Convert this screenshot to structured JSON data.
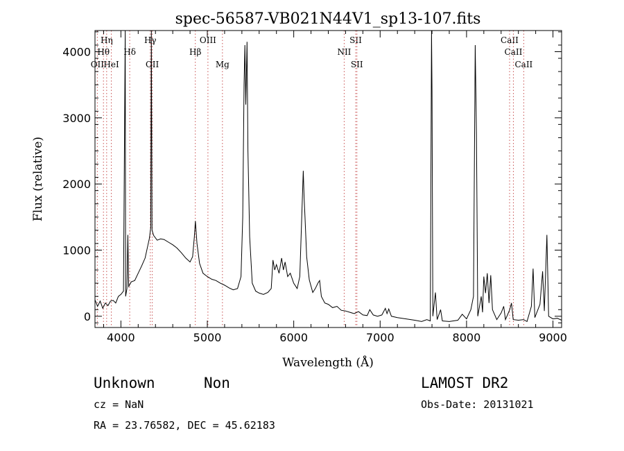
{
  "chart_data": {
    "type": "line",
    "title": "spec-56587-VB021N44V1_sp13-107.fits",
    "xlabel": "Wavelength (Å)",
    "ylabel": "Flux (relative)",
    "xlim": [
      3700,
      9100
    ],
    "ylim": [
      -170,
      4320
    ],
    "xticks": [
      4000,
      5000,
      6000,
      7000,
      8000,
      9000
    ],
    "yticks": [
      0,
      1000,
      2000,
      3000,
      4000
    ],
    "grid": false,
    "series": [
      {
        "points": [
          [
            3700,
            250
          ],
          [
            3730,
            150
          ],
          [
            3760,
            230
          ],
          [
            3790,
            120
          ],
          [
            3820,
            200
          ],
          [
            3850,
            160
          ],
          [
            3880,
            230
          ],
          [
            3910,
            240
          ],
          [
            3940,
            200
          ],
          [
            3970,
            300
          ],
          [
            4000,
            330
          ],
          [
            4030,
            380
          ],
          [
            4050,
            4320
          ],
          [
            4055,
            300
          ],
          [
            4070,
            420
          ],
          [
            4080,
            1230
          ],
          [
            4090,
            450
          ],
          [
            4120,
            520
          ],
          [
            4160,
            540
          ],
          [
            4200,
            650
          ],
          [
            4240,
            760
          ],
          [
            4280,
            880
          ],
          [
            4310,
            1060
          ],
          [
            4330,
            1180
          ],
          [
            4345,
            1340
          ],
          [
            4352,
            4320
          ],
          [
            4360,
            1300
          ],
          [
            4380,
            1220
          ],
          [
            4420,
            1150
          ],
          [
            4460,
            1170
          ],
          [
            4500,
            1160
          ],
          [
            4550,
            1120
          ],
          [
            4600,
            1080
          ],
          [
            4650,
            1030
          ],
          [
            4700,
            960
          ],
          [
            4750,
            880
          ],
          [
            4800,
            820
          ],
          [
            4830,
            900
          ],
          [
            4850,
            1200
          ],
          [
            4862,
            1440
          ],
          [
            4880,
            1100
          ],
          [
            4910,
            800
          ],
          [
            4950,
            650
          ],
          [
            5000,
            600
          ],
          [
            5050,
            560
          ],
          [
            5100,
            540
          ],
          [
            5150,
            500
          ],
          [
            5200,
            470
          ],
          [
            5250,
            430
          ],
          [
            5300,
            400
          ],
          [
            5350,
            420
          ],
          [
            5390,
            600
          ],
          [
            5410,
            1500
          ],
          [
            5425,
            3500
          ],
          [
            5435,
            4100
          ],
          [
            5445,
            3200
          ],
          [
            5460,
            4150
          ],
          [
            5470,
            2500
          ],
          [
            5490,
            1200
          ],
          [
            5520,
            500
          ],
          [
            5560,
            380
          ],
          [
            5600,
            350
          ],
          [
            5650,
            330
          ],
          [
            5700,
            360
          ],
          [
            5740,
            420
          ],
          [
            5760,
            850
          ],
          [
            5780,
            700
          ],
          [
            5800,
            780
          ],
          [
            5830,
            650
          ],
          [
            5860,
            880
          ],
          [
            5880,
            700
          ],
          [
            5900,
            820
          ],
          [
            5930,
            600
          ],
          [
            5960,
            650
          ],
          [
            6000,
            500
          ],
          [
            6040,
            420
          ],
          [
            6070,
            600
          ],
          [
            6090,
            1400
          ],
          [
            6110,
            2200
          ],
          [
            6120,
            1800
          ],
          [
            6130,
            1500
          ],
          [
            6150,
            900
          ],
          [
            6180,
            550
          ],
          [
            6220,
            360
          ],
          [
            6250,
            420
          ],
          [
            6280,
            500
          ],
          [
            6300,
            540
          ],
          [
            6320,
            300
          ],
          [
            6360,
            200
          ],
          [
            6400,
            180
          ],
          [
            6450,
            130
          ],
          [
            6500,
            150
          ],
          [
            6550,
            90
          ],
          [
            6600,
            80
          ],
          [
            6650,
            60
          ],
          [
            6700,
            40
          ],
          [
            6750,
            70
          ],
          [
            6800,
            20
          ],
          [
            6850,
            10
          ],
          [
            6880,
            100
          ],
          [
            6920,
            20
          ],
          [
            6970,
            0
          ],
          [
            7020,
            20
          ],
          [
            7060,
            120
          ],
          [
            7080,
            40
          ],
          [
            7100,
            110
          ],
          [
            7130,
            0
          ],
          [
            7200,
            -20
          ],
          [
            7300,
            -40
          ],
          [
            7400,
            -60
          ],
          [
            7480,
            -80
          ],
          [
            7540,
            -50
          ],
          [
            7580,
            -70
          ],
          [
            7595,
            4320
          ],
          [
            7600,
            3400
          ],
          [
            7610,
            0
          ],
          [
            7640,
            360
          ],
          [
            7660,
            -50
          ],
          [
            7700,
            100
          ],
          [
            7720,
            -70
          ],
          [
            7800,
            -80
          ],
          [
            7900,
            -60
          ],
          [
            7950,
            30
          ],
          [
            8000,
            -40
          ],
          [
            8050,
            100
          ],
          [
            8080,
            300
          ],
          [
            8100,
            4100
          ],
          [
            8115,
            2750
          ],
          [
            8130,
            0
          ],
          [
            8170,
            300
          ],
          [
            8185,
            60
          ],
          [
            8200,
            600
          ],
          [
            8220,
            350
          ],
          [
            8240,
            650
          ],
          [
            8260,
            200
          ],
          [
            8280,
            620
          ],
          [
            8300,
            100
          ],
          [
            8350,
            -50
          ],
          [
            8400,
            50
          ],
          [
            8430,
            150
          ],
          [
            8450,
            -50
          ],
          [
            8500,
            100
          ],
          [
            8520,
            200
          ],
          [
            8540,
            -50
          ],
          [
            8600,
            -60
          ],
          [
            8660,
            -50
          ],
          [
            8700,
            -80
          ],
          [
            8750,
            150
          ],
          [
            8770,
            720
          ],
          [
            8790,
            -20
          ],
          [
            8850,
            180
          ],
          [
            8880,
            680
          ],
          [
            8900,
            80
          ],
          [
            8930,
            1230
          ],
          [
            8950,
            0
          ],
          [
            9000,
            -40
          ],
          [
            9050,
            -30
          ],
          [
            9100,
            -60
          ]
        ]
      }
    ],
    "lines": [
      {
        "label": "Hη",
        "wave": 3835,
        "row": 1
      },
      {
        "label": "Hθ",
        "wave": 3798,
        "row": 2
      },
      {
        "label": "OII",
        "wave": 3727,
        "row": 3
      },
      {
        "label": "HeI",
        "wave": 3889,
        "row": 3
      },
      {
        "label": "Hδ",
        "wave": 4102,
        "row": 2
      },
      {
        "label": "Hγ",
        "wave": 4340,
        "row": 1
      },
      {
        "label": "OII",
        "wave": 4363,
        "row": 3
      },
      {
        "label": "OIII",
        "wave": 5007,
        "row": 1
      },
      {
        "label": "Hβ",
        "wave": 4861,
        "row": 2
      },
      {
        "label": "Mg",
        "wave": 5175,
        "row": 3
      },
      {
        "label": "SII",
        "wave": 6717,
        "row": 1
      },
      {
        "label": "NII",
        "wave": 6584,
        "row": 2
      },
      {
        "label": "SII",
        "wave": 6731,
        "row": 3
      },
      {
        "label": "CaII",
        "wave": 8498,
        "row": 1
      },
      {
        "label": "CaII",
        "wave": 8542,
        "row": 2
      },
      {
        "label": "CaII",
        "wave": 8662,
        "row": 3
      }
    ]
  },
  "info": {
    "class": "Unknown",
    "subclass": "Non",
    "survey": "LAMOST DR2",
    "redshift": "cz = NaN",
    "obs_date": "Obs-Date: 20131021",
    "coords": "RA =  23.76582, DEC =  45.62183"
  }
}
